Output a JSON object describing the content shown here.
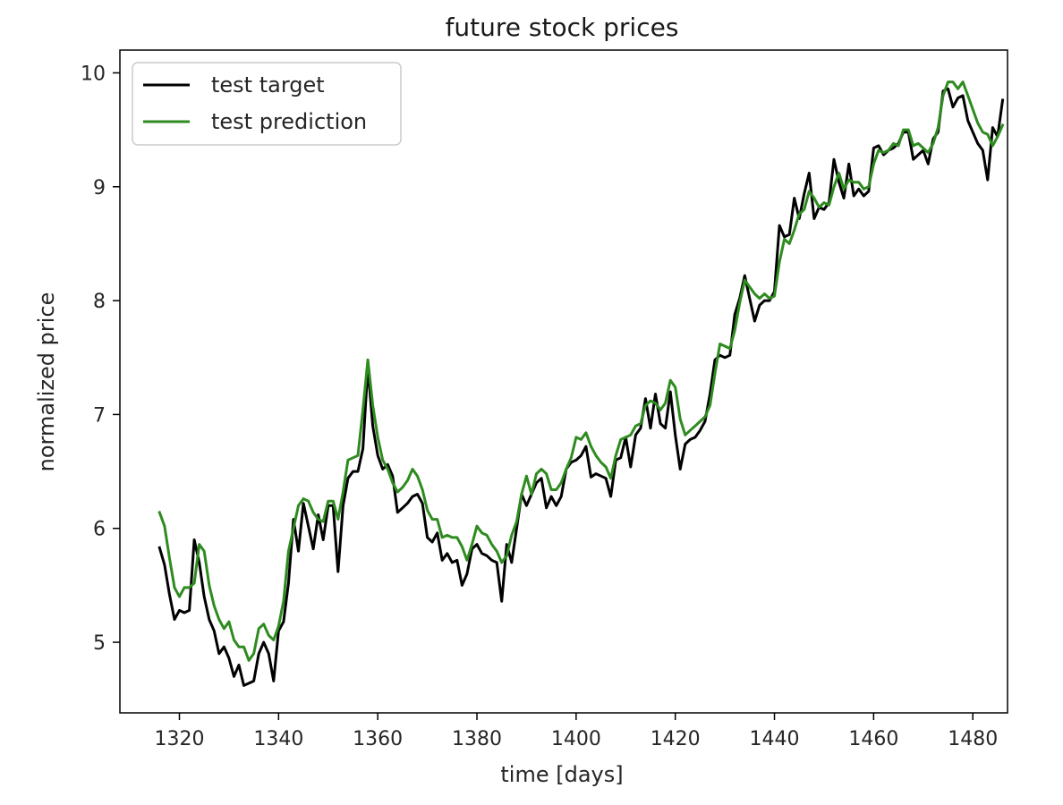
{
  "chart_data": {
    "type": "line",
    "title": "future stock prices",
    "xlabel": "time [days]",
    "ylabel": "normalized price",
    "xlim": [
      1308,
      1487
    ],
    "ylim": [
      4.38,
      10.2
    ],
    "xticks": [
      1320,
      1340,
      1360,
      1380,
      1400,
      1420,
      1440,
      1460,
      1480
    ],
    "yticks": [
      5,
      6,
      7,
      8,
      9,
      10
    ],
    "grid": false,
    "legend_position": "top-left",
    "series": [
      {
        "name": "test target",
        "color": "#000000",
        "x_start": 1316,
        "x_step": 1,
        "values": [
          5.83,
          5.68,
          5.42,
          5.2,
          5.28,
          5.26,
          5.28,
          5.9,
          5.7,
          5.4,
          5.2,
          5.1,
          4.9,
          4.96,
          4.86,
          4.7,
          4.8,
          4.62,
          4.64,
          4.66,
          4.9,
          5.0,
          4.9,
          4.66,
          5.1,
          5.18,
          5.52,
          6.08,
          5.8,
          6.22,
          6.02,
          5.82,
          6.12,
          5.9,
          6.2,
          6.2,
          5.62,
          6.2,
          6.44,
          6.5,
          6.5,
          6.7,
          7.42,
          6.9,
          6.64,
          6.52,
          6.56,
          6.46,
          6.14,
          6.18,
          6.22,
          6.28,
          6.3,
          6.22,
          5.92,
          5.88,
          5.96,
          5.72,
          5.78,
          5.7,
          5.72,
          5.5,
          5.6,
          5.82,
          5.86,
          5.78,
          5.76,
          5.72,
          5.7,
          5.36,
          5.86,
          5.7,
          6.0,
          6.3,
          6.2,
          6.3,
          6.4,
          6.44,
          6.18,
          6.28,
          6.2,
          6.28,
          6.52,
          6.58,
          6.6,
          6.64,
          6.72,
          6.45,
          6.48,
          6.46,
          6.44,
          6.28,
          6.6,
          6.62,
          6.8,
          6.54,
          6.82,
          6.88,
          7.14,
          6.88,
          7.18,
          6.92,
          6.88,
          7.2,
          6.82,
          6.52,
          6.74,
          6.78,
          6.8,
          6.86,
          6.94,
          7.18,
          7.48,
          7.52,
          7.5,
          7.52,
          7.88,
          8.02,
          8.22,
          8.02,
          7.82,
          7.96,
          8.0,
          8.0,
          8.08,
          8.66,
          8.56,
          8.58,
          8.9,
          8.72,
          8.94,
          9.12,
          8.72,
          8.82,
          8.8,
          8.86,
          9.24,
          9.04,
          8.9,
          9.2,
          8.92,
          8.98,
          8.92,
          8.96,
          9.34,
          9.36,
          9.28,
          9.32,
          9.34,
          9.38,
          9.48,
          9.48,
          9.24,
          9.28,
          9.32,
          9.2,
          9.42,
          9.48,
          9.84,
          9.86,
          9.7,
          9.78,
          9.8,
          9.58,
          9.48,
          9.38,
          9.32,
          9.06,
          9.52,
          9.44,
          9.76
        ]
      },
      {
        "name": "test prediction",
        "color": "#2e8b1f",
        "x_start": 1316,
        "x_step": 1,
        "values": [
          6.14,
          6.02,
          5.74,
          5.48,
          5.4,
          5.48,
          5.48,
          5.52,
          5.86,
          5.8,
          5.5,
          5.32,
          5.2,
          5.12,
          5.18,
          5.02,
          4.96,
          4.96,
          4.84,
          4.9,
          5.12,
          5.16,
          5.06,
          5.02,
          5.14,
          5.36,
          5.8,
          6.0,
          6.2,
          6.26,
          6.24,
          6.14,
          6.08,
          6.06,
          6.24,
          6.24,
          6.08,
          6.32,
          6.6,
          6.62,
          6.64,
          7.04,
          7.48,
          7.08,
          6.8,
          6.6,
          6.52,
          6.4,
          6.32,
          6.36,
          6.42,
          6.52,
          6.46,
          6.34,
          6.16,
          6.08,
          6.08,
          5.92,
          5.94,
          5.92,
          5.92,
          5.84,
          5.72,
          5.86,
          6.02,
          5.96,
          5.94,
          5.86,
          5.8,
          5.7,
          5.76,
          5.94,
          6.06,
          6.3,
          6.46,
          6.3,
          6.48,
          6.52,
          6.48,
          6.34,
          6.34,
          6.4,
          6.52,
          6.62,
          6.8,
          6.78,
          6.84,
          6.72,
          6.64,
          6.58,
          6.54,
          6.44,
          6.64,
          6.78,
          6.8,
          6.82,
          6.9,
          6.92,
          7.08,
          7.12,
          7.1,
          7.04,
          7.1,
          7.3,
          7.24,
          6.96,
          6.82,
          6.86,
          6.9,
          6.94,
          6.98,
          7.08,
          7.36,
          7.62,
          7.6,
          7.58,
          7.74,
          7.98,
          8.18,
          8.12,
          8.06,
          8.02,
          8.06,
          8.02,
          8.04,
          8.34,
          8.54,
          8.5,
          8.62,
          8.76,
          8.8,
          8.96,
          8.9,
          8.82,
          8.86,
          8.84,
          9.0,
          9.12,
          8.98,
          9.06,
          9.04,
          9.04,
          8.98,
          9.0,
          9.2,
          9.32,
          9.3,
          9.32,
          9.38,
          9.36,
          9.5,
          9.5,
          9.36,
          9.38,
          9.34,
          9.3,
          9.38,
          9.52,
          9.8,
          9.92,
          9.92,
          9.86,
          9.92,
          9.8,
          9.68,
          9.56,
          9.48,
          9.46,
          9.36,
          9.44,
          9.54
        ]
      }
    ]
  }
}
